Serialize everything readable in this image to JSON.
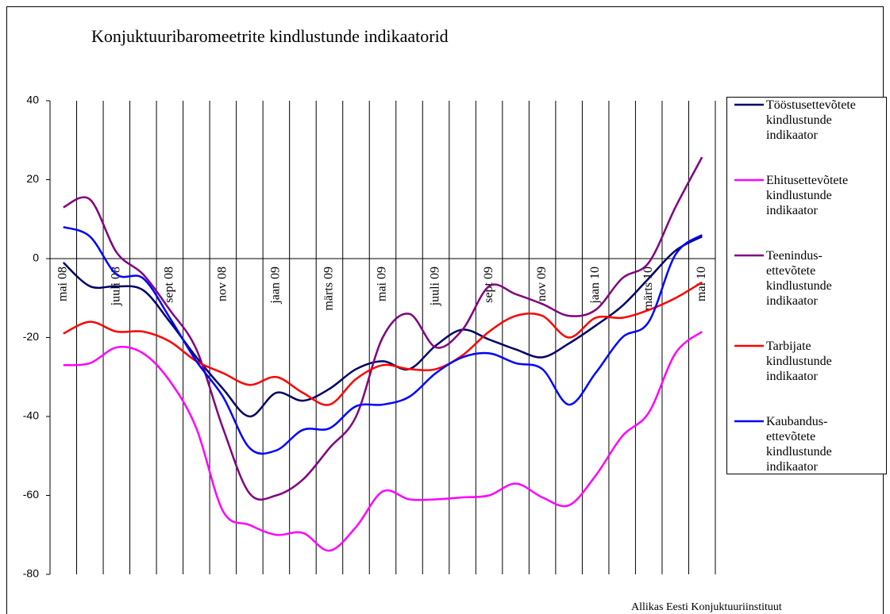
{
  "chart_data": {
    "type": "line",
    "title": "Konjuktuuribaromeetrite kindlustunde indikaatorid",
    "source": "Allikas Eesti Konjuktuuriinstituut",
    "categories": [
      "mai 08",
      null,
      "juuli 08",
      null,
      "sept 08",
      null,
      "nov 08",
      null,
      "jaan 09",
      null,
      "märts 09",
      null,
      "mai 09",
      null,
      "juuli 09",
      null,
      "sept 09",
      null,
      "nov 09",
      null,
      "jaan 10",
      null,
      "märts 10",
      null,
      "mai 10"
    ],
    "ylim": [
      -80,
      40
    ],
    "yticks": [
      -80,
      -60,
      -40,
      -20,
      0,
      20,
      40
    ],
    "category_grid": true,
    "smooth": true,
    "series": [
      {
        "name": "Tööstusettevõtete\nkindlustunde\nindikaator",
        "color": "#000066",
        "values": [
          -1,
          -7,
          -7,
          -8,
          -16,
          -25,
          -33,
          -40,
          -34,
          -36,
          -33,
          -28,
          -26,
          -28,
          -22,
          -18,
          -20.5,
          -23,
          -25,
          -21.5,
          -17,
          -12,
          -5,
          2,
          5.6
        ]
      },
      {
        "name": "Ehitusettevõtete\nkindlustunde\nindikaator",
        "color": "#ff00ff",
        "values": [
          -27,
          -26.5,
          -22.5,
          -24,
          -31,
          -43,
          -64,
          -67.5,
          -70,
          -69.5,
          -74,
          -68,
          -59,
          -61,
          -61,
          -60.5,
          -60,
          -57,
          -60.5,
          -62.5,
          -55,
          -45,
          -39,
          -24,
          -18.5
        ]
      },
      {
        "name": "Teenindus-\nettevõtete\nkindlustunde\nindikaator",
        "color": "#800080",
        "values": [
          13,
          15,
          1.6,
          -4,
          -13,
          -23,
          -43,
          -59.5,
          -60,
          -56,
          -48,
          -40,
          -20,
          -14,
          -22.5,
          -18,
          -7,
          -9,
          -11.5,
          -14.5,
          -13,
          -5,
          -1,
          13,
          25.7
        ]
      },
      {
        "name": "Tarbijate\nkindlustunde\nindikaator",
        "color": "#ff0000",
        "values": [
          -19,
          -16,
          -18.5,
          -18.5,
          -21,
          -26,
          -29,
          -32,
          -30,
          -34,
          -37,
          -30.5,
          -27,
          -28,
          -28,
          -24.5,
          -18.5,
          -14.5,
          -14.5,
          -20,
          -15,
          -15,
          -13,
          -10,
          -6
        ]
      },
      {
        "name": "Kaubandus-\nettevõtete\nkindlustunde\nindikaator",
        "color": "#0000ff",
        "values": [
          8,
          5.6,
          -4,
          -5,
          -15,
          -26,
          -35,
          -48,
          -48.6,
          -43.4,
          -43,
          -37.4,
          -37,
          -35,
          -29,
          -25,
          -24,
          -26.5,
          -28,
          -37,
          -29,
          -20,
          -16,
          1,
          6
        ]
      }
    ]
  }
}
